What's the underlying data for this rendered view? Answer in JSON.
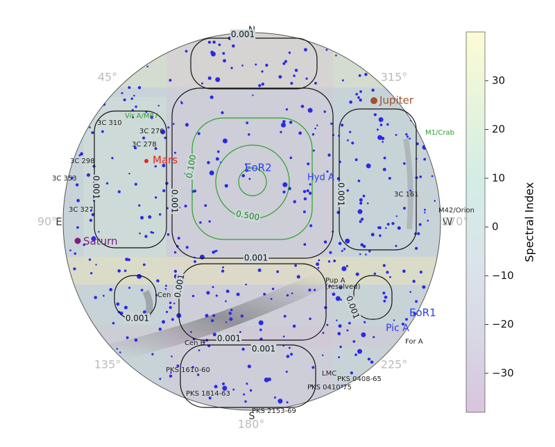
{
  "chart_data": {
    "type": "skymap",
    "compass": [
      "N",
      "S",
      "E",
      "W",
      "45°",
      "315°",
      "90°",
      "270°",
      "135°",
      "225°",
      "180°"
    ],
    "sources": [
      {
        "name": "EoR2",
        "color": "#2a3cf0"
      },
      {
        "name": "Hyd A",
        "color": "#2a3cf0"
      },
      {
        "name": "Jupiter",
        "color": "#a0522d"
      },
      {
        "name": "Mars",
        "color": "#e8231c"
      },
      {
        "name": "Saturn",
        "color": "#7b1f7b"
      },
      {
        "name": "Vir A/M87",
        "color": "#2ca02c"
      },
      {
        "name": "M1/Crab",
        "color": "#2ca02c"
      },
      {
        "name": "3C 310",
        "color": "#222222"
      },
      {
        "name": "3C 270",
        "color": "#222222"
      },
      {
        "name": "3C 278",
        "color": "#222222"
      },
      {
        "name": "3C 298",
        "color": "#222222"
      },
      {
        "name": "3C 353",
        "color": "#222222"
      },
      {
        "name": "3C 327",
        "color": "#222222"
      },
      {
        "name": "3C 161",
        "color": "#222222"
      },
      {
        "name": "M42/Orion",
        "color": "#222222"
      },
      {
        "name": "Pup A",
        "color": "#222222"
      },
      {
        "name": "(resolved)",
        "color": "#222222"
      },
      {
        "name": "Cen A",
        "color": "#222222"
      },
      {
        "name": "Cen B",
        "color": "#222222"
      },
      {
        "name": "EoR1",
        "color": "#2a3cf0"
      },
      {
        "name": "Pic A",
        "color": "#2a3cf0"
      },
      {
        "name": "For A",
        "color": "#222222"
      },
      {
        "name": "LMC",
        "color": "#222222"
      },
      {
        "name": "PKS 0408-65",
        "color": "#222222"
      },
      {
        "name": "PKS 0410-75",
        "color": "#222222"
      },
      {
        "name": "PKS 1610-60",
        "color": "#222222"
      },
      {
        "name": "PKS 1814-63",
        "color": "#222222"
      },
      {
        "name": "PKS 2153-69",
        "color": "#222222"
      }
    ],
    "contour_labels": [
      "0.001",
      "0.100",
      "0.500"
    ],
    "y_label": "Spectral Index",
    "ylim": [
      -38,
      40
    ],
    "yticks": [
      30,
      20,
      10,
      0,
      {
        "value": -10,
        "label": "−10"
      },
      {
        "value": -20,
        "label": "−20"
      },
      {
        "value": -30,
        "label": "−30"
      }
    ],
    "colormap": [
      "#d9c4dc",
      "#d8d8e6",
      "#dbe4ea",
      "#d3ece6",
      "#e6f4dc",
      "#fdfbd5"
    ]
  }
}
